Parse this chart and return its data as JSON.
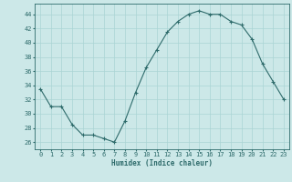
{
  "x": [
    0,
    1,
    2,
    3,
    4,
    5,
    6,
    7,
    8,
    9,
    10,
    11,
    12,
    13,
    14,
    15,
    16,
    17,
    18,
    19,
    20,
    21,
    22,
    23
  ],
  "y": [
    33.5,
    31.0,
    31.0,
    28.5,
    27.0,
    27.0,
    26.5,
    26.0,
    29.0,
    33.0,
    36.5,
    39.0,
    41.5,
    43.0,
    44.0,
    44.5,
    44.0,
    44.0,
    43.0,
    42.5,
    40.5,
    37.0,
    34.5,
    32.0
  ],
  "line_color": "#2e6b6b",
  "marker": "+",
  "marker_size": 3,
  "marker_lw": 0.8,
  "bg_color": "#cce8e8",
  "grid_color": "#aad4d4",
  "xlabel": "Humidex (Indice chaleur)",
  "xlim": [
    -0.5,
    23.5
  ],
  "ylim": [
    25,
    45.5
  ],
  "yticks": [
    26,
    28,
    30,
    32,
    34,
    36,
    38,
    40,
    42,
    44
  ],
  "xticks": [
    0,
    1,
    2,
    3,
    4,
    5,
    6,
    7,
    8,
    9,
    10,
    11,
    12,
    13,
    14,
    15,
    16,
    17,
    18,
    19,
    20,
    21,
    22,
    23
  ],
  "tick_color": "#2e6b6b",
  "label_color": "#2e6b6b",
  "label_fontsize": 5.5,
  "tick_fontsize": 5,
  "line_width": 0.8
}
